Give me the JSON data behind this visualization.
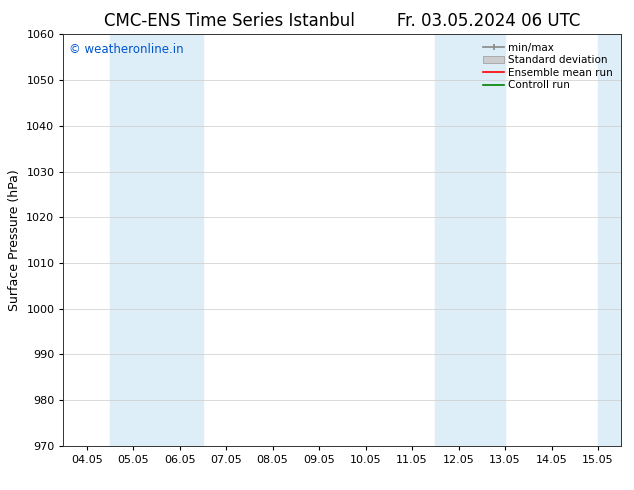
{
  "title": "CMC-ENS Time Series Istanbul",
  "title_right": "Fr. 03.05.2024 06 UTC",
  "ylabel": "Surface Pressure (hPa)",
  "ylim": [
    970,
    1060
  ],
  "yticks": [
    970,
    980,
    990,
    1000,
    1010,
    1020,
    1030,
    1040,
    1050,
    1060
  ],
  "xtick_labels": [
    "04.05",
    "05.05",
    "06.05",
    "07.05",
    "08.05",
    "09.05",
    "10.05",
    "11.05",
    "12.05",
    "13.05",
    "14.05",
    "15.05"
  ],
  "watermark": "© weatheronline.in",
  "watermark_color": "#0055cc",
  "shaded_band_xranges": [
    [
      0.5,
      2.5
    ],
    [
      7.5,
      9.0
    ],
    [
      11.5,
      12.0
    ]
  ],
  "band_color": "#deeef8",
  "legend_entries": [
    "min/max",
    "Standard deviation",
    "Ensemble mean run",
    "Controll run"
  ],
  "background_color": "#ffffff",
  "plot_background": "#ffffff",
  "grid_color": "#cccccc",
  "title_fontsize": 12,
  "tick_fontsize": 8,
  "label_fontsize": 9
}
